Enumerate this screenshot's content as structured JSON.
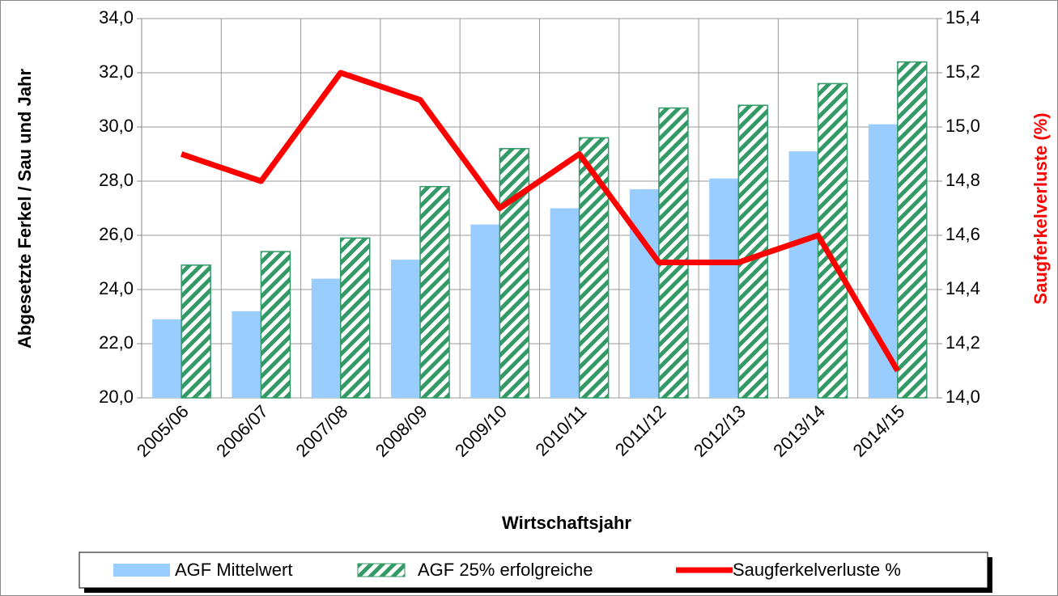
{
  "chart_data": {
    "type": "bar",
    "x_label": "Wirtschaftsjahr",
    "y_label": "Abgesetzte Ferkel / Sau und Jahr",
    "y2_label": "Saugferkelverluste  (%)",
    "categories": [
      "2005/06",
      "2006/07",
      "2007/08",
      "2008/09",
      "2009/10",
      "2010/11",
      "2011/12",
      "2012/13",
      "2013/14",
      "2014/15"
    ],
    "series": [
      {
        "name": "AGF Mittelwert",
        "color": "#99ccff",
        "values": [
          22.9,
          23.2,
          24.4,
          25.1,
          26.4,
          27.0,
          27.7,
          28.1,
          29.1,
          30.1
        ]
      },
      {
        "name": "AGF 25% erfolgreiche",
        "color": "#339966",
        "hatch": true,
        "values": [
          24.9,
          25.4,
          25.9,
          27.8,
          29.2,
          29.6,
          30.7,
          30.8,
          31.6,
          32.4
        ]
      },
      {
        "name": "Saugferkelverluste %",
        "color": "#ff0000",
        "type": "line",
        "axis": "y2",
        "values": [
          14.9,
          14.8,
          15.2,
          15.1,
          14.7,
          14.9,
          14.5,
          14.5,
          14.6,
          14.1
        ]
      }
    ],
    "ylim": [
      20,
      34
    ],
    "yticks": [
      {
        "value": 20,
        "label": "20,0"
      },
      {
        "value": 22,
        "label": "22,0"
      },
      {
        "value": 24,
        "label": "24,0"
      },
      {
        "value": 26,
        "label": "26,0"
      },
      {
        "value": 28,
        "label": "28,0"
      },
      {
        "value": 30,
        "label": "30,0"
      },
      {
        "value": 32,
        "label": "32,0"
      },
      {
        "value": 34,
        "label": "34,0"
      }
    ],
    "y2lim": [
      14.0,
      15.4
    ],
    "y2ticks": [
      {
        "value": 14.0,
        "label": "14,0"
      },
      {
        "value": 14.2,
        "label": "14,2"
      },
      {
        "value": 14.4,
        "label": "14,4"
      },
      {
        "value": 14.6,
        "label": "14,6"
      },
      {
        "value": 14.8,
        "label": "14,8"
      },
      {
        "value": 15.0,
        "label": "15,0"
      },
      {
        "value": 15.2,
        "label": "15,2"
      },
      {
        "value": 15.4,
        "label": "15,4"
      }
    ],
    "grid": true,
    "legend": "bottom"
  }
}
